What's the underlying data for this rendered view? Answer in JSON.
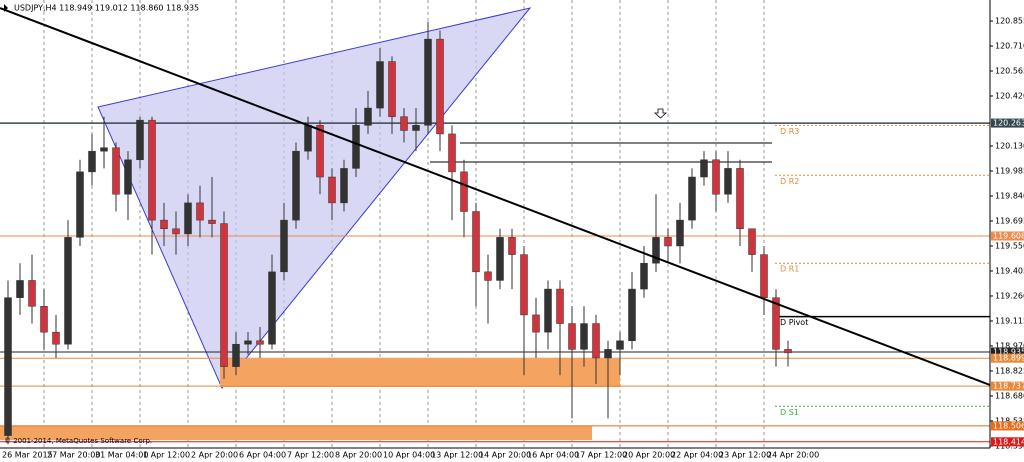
{
  "chart_data": {
    "type": "candlestick",
    "title": "USDJPY,H4  118.949 119.012 118.860 118.935",
    "footer": "© 2001-2014, MetaQuotes Software Corp.",
    "categories": [
      "26 Mar 2015",
      null,
      null,
      "27 Mar 20:00",
      null,
      null,
      null,
      "31 Mar 04:00",
      null,
      null,
      null,
      "1 Apr 12:00",
      null,
      null,
      null,
      "2 Apr 20:00",
      null,
      null,
      null,
      "6 Apr 04:00",
      null,
      null,
      null,
      "7 Apr 12:00",
      null,
      null,
      null,
      "8 Apr 20:00",
      null,
      null,
      null,
      "10 Apr 04:00",
      null,
      null,
      null,
      "13 Apr 12:00",
      null,
      null,
      null,
      "14 Apr 20:00",
      null,
      null,
      null,
      "16 Apr 04:00",
      null,
      null,
      null,
      "17 Apr 12:00",
      null,
      null,
      null,
      "20 Apr 20:00",
      null,
      null,
      null,
      "22 Apr 04:00",
      null,
      null,
      null,
      "23 Apr 12:00",
      null,
      null,
      null,
      "24 Apr 20:00",
      null,
      null
    ],
    "open": [
      118.45,
      119.25,
      119.35,
      119.2,
      119.05,
      118.98,
      119.6,
      119.98,
      120.1,
      120.12,
      119.85,
      120.05,
      120.28,
      119.7,
      119.65,
      119.62,
      119.8,
      119.7,
      119.68,
      118.85,
      118.98,
      119.0,
      118.98,
      119.4,
      119.7,
      120.1,
      120.25,
      119.95,
      119.8,
      120.0,
      120.25,
      120.35,
      120.62,
      120.3,
      120.22,
      120.25,
      120.75,
      120.2,
      119.98,
      119.75,
      119.4,
      119.35,
      119.6,
      119.5,
      119.15,
      119.05,
      119.3,
      119.1,
      118.95,
      119.1,
      118.9,
      118.95,
      119.0,
      119.3,
      119.45,
      119.6,
      119.55,
      119.7,
      119.95,
      120.05,
      119.85,
      120.0,
      119.65,
      119.5,
      119.25,
      118.95
    ],
    "high": [
      119.35,
      119.45,
      119.5,
      119.3,
      119.15,
      119.7,
      120.05,
      120.2,
      120.3,
      120.15,
      120.1,
      120.3,
      120.3,
      119.8,
      119.75,
      119.85,
      119.9,
      119.95,
      119.75,
      119.05,
      119.05,
      119.08,
      119.5,
      119.8,
      120.15,
      120.3,
      120.28,
      120.0,
      120.05,
      120.35,
      120.45,
      120.7,
      120.65,
      120.35,
      120.35,
      120.85,
      120.8,
      120.25,
      120.05,
      119.8,
      119.5,
      119.65,
      119.65,
      119.55,
      119.25,
      119.35,
      119.35,
      119.2,
      119.2,
      119.15,
      119.0,
      119.05,
      119.4,
      119.55,
      119.85,
      119.65,
      119.8,
      120.0,
      120.1,
      120.1,
      120.1,
      120.05,
      119.65,
      119.55,
      119.3,
      119.0
    ],
    "low": [
      118.4,
      119.15,
      119.1,
      118.95,
      118.9,
      118.95,
      119.55,
      119.9,
      120.0,
      119.75,
      119.7,
      120.0,
      119.5,
      119.55,
      119.5,
      119.55,
      119.6,
      119.6,
      118.78,
      118.8,
      118.92,
      118.9,
      118.95,
      119.35,
      119.65,
      120.05,
      119.85,
      119.7,
      119.75,
      119.95,
      120.2,
      120.3,
      120.2,
      120.15,
      120.1,
      120.2,
      120.1,
      119.7,
      119.6,
      119.2,
      119.1,
      119.3,
      119.3,
      118.8,
      118.9,
      118.95,
      118.8,
      118.55,
      118.85,
      118.75,
      118.55,
      118.8,
      118.95,
      119.25,
      119.4,
      119.45,
      119.45,
      119.65,
      119.9,
      119.75,
      119.8,
      119.55,
      119.4,
      119.15,
      118.85,
      118.85
    ],
    "close": [
      119.25,
      119.35,
      119.2,
      119.05,
      118.98,
      119.6,
      119.98,
      120.1,
      120.12,
      119.85,
      120.05,
      120.28,
      119.7,
      119.65,
      119.62,
      119.8,
      119.7,
      119.68,
      118.85,
      118.98,
      119.0,
      118.98,
      119.4,
      119.7,
      120.1,
      120.25,
      119.95,
      119.8,
      120.0,
      120.25,
      120.35,
      120.62,
      120.3,
      120.22,
      120.25,
      120.75,
      120.2,
      119.98,
      119.75,
      119.4,
      119.35,
      119.6,
      119.5,
      119.15,
      119.05,
      119.3,
      119.1,
      118.95,
      119.1,
      118.9,
      118.95,
      119.0,
      119.3,
      119.45,
      119.6,
      119.55,
      119.7,
      119.95,
      120.05,
      119.85,
      120.0,
      119.65,
      119.5,
      119.25,
      118.95,
      118.93
    ],
    "up_color": "#333333",
    "down_color": "#d0343c",
    "ylim": [
      118.378,
      120.977
    ],
    "yticks": [
      120.855,
      {
        "value": 120.71,
        "label": "120.710"
      },
      120.565,
      {
        "value": 120.42,
        "label": "120.420"
      },
      {
        "value": 120.13,
        "label": "120.130"
      },
      119.985,
      {
        "value": 119.84,
        "label": "119.840"
      },
      119.695,
      {
        "value": 119.55,
        "label": "119.550"
      },
      119.405,
      {
        "value": 119.26,
        "label": "119.260"
      },
      119.115,
      {
        "value": 118.97,
        "label": "118.970"
      },
      118.825,
      {
        "value": 118.68,
        "label": "118.680"
      },
      118.535,
      {
        "value": 118.39,
        "label": "118.390"
      }
    ],
    "grid": true,
    "levels": [
      {
        "value": 120.263,
        "color": "#37474f"
      },
      {
        "value": 119.608,
        "color": "#f08a4b"
      },
      {
        "value": 118.935,
        "color": "#222222"
      },
      {
        "value": 118.899,
        "color": "#e8893a"
      },
      {
        "value": 118.737,
        "color": "#e8893a"
      },
      {
        "value": 118.506,
        "color": "#e86a1a"
      },
      {
        "value": 118.414,
        "color": "#e01818"
      }
    ],
    "pivots": [
      {
        "label": "D R3",
        "value": 120.25,
        "color": "#e8893a"
      },
      {
        "label": "D R2",
        "value": 119.96,
        "color": "#e8893a"
      },
      {
        "label": "D R1",
        "value": 119.45,
        "color": "#e8893a"
      },
      {
        "label": "D Pivot",
        "value": 119.14,
        "color": "#000000"
      },
      {
        "label": "D S1",
        "value": 118.62,
        "color": "#3cb043"
      }
    ]
  }
}
